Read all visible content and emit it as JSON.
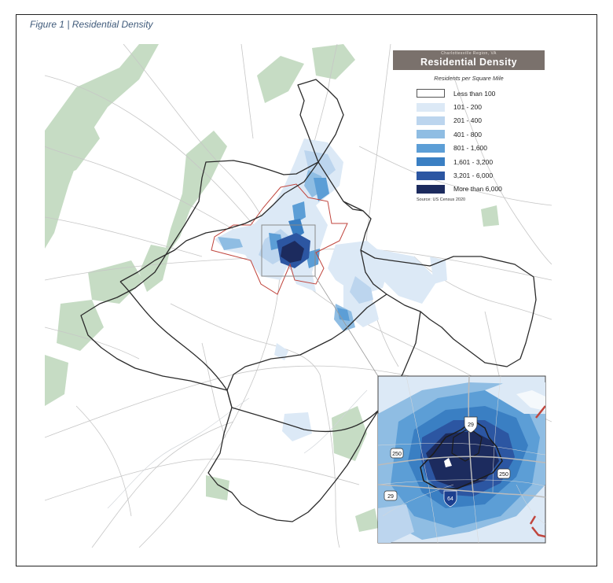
{
  "figure_title": "Figure 1 | Residential Density",
  "legend": {
    "region": "Charlottesville Region, VA",
    "title": "Residential Density",
    "subtitle": "Residents per Square Mile",
    "source": "Source: US Census 2020",
    "items": [
      {
        "label": "Less than 100",
        "color": "#ffffff"
      },
      {
        "label": "101 - 200",
        "color": "#dce9f6"
      },
      {
        "label": "201 - 400",
        "color": "#bcd5ee"
      },
      {
        "label": "401 - 800",
        "color": "#8fbde3"
      },
      {
        "label": "801 - 1,600",
        "color": "#5c9ed6"
      },
      {
        "label": "1,601 - 3,200",
        "color": "#3a7fc3"
      },
      {
        "label": "3,201 - 6,000",
        "color": "#2c56a2"
      },
      {
        "label": "More than 6,000",
        "color": "#1c2b5e"
      }
    ]
  },
  "inset": {
    "shields": {
      "i29_top": "29",
      "us250_left": "250",
      "us250_right": "250",
      "us29_bottom": "29",
      "i64": "64"
    }
  },
  "colors": {
    "forest": "#c6dcc4",
    "road": "#c6c6c6",
    "county_border": "#2b2b2b",
    "city_border": "#c0453d"
  }
}
